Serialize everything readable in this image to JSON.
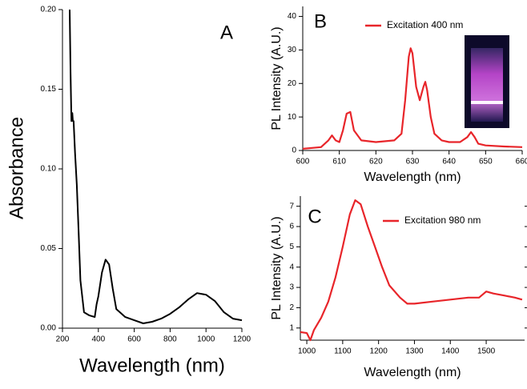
{
  "chart_data": [
    {
      "type": "line",
      "panel_label": "A",
      "x_label": "Wavelength (nm)",
      "y_label": "Absorbance",
      "x": [
        240,
        245,
        250,
        255,
        258,
        262,
        270,
        280,
        290,
        300,
        320,
        350,
        380,
        390,
        400,
        420,
        440,
        460,
        480,
        500,
        550,
        600,
        650,
        700,
        750,
        800,
        850,
        900,
        950,
        1000,
        1050,
        1100,
        1150,
        1200
      ],
      "series": [
        {
          "color": "#000000",
          "values": [
            0.2,
            0.16,
            0.13,
            0.135,
            0.13,
            0.13,
            0.11,
            0.09,
            0.06,
            0.03,
            0.01,
            0.008,
            0.007,
            0.015,
            0.02,
            0.035,
            0.043,
            0.04,
            0.025,
            0.012,
            0.007,
            0.005,
            0.003,
            0.004,
            0.006,
            0.009,
            0.013,
            0.018,
            0.022,
            0.021,
            0.017,
            0.01,
            0.006,
            0.005
          ]
        }
      ],
      "xlim": [
        200,
        1200
      ],
      "ylim": [
        0,
        0.2
      ],
      "xticks": [
        200,
        400,
        600,
        800,
        1000,
        1200
      ],
      "yticks": [
        {
          "value": 0,
          "label": "0.00"
        },
        0.05,
        {
          "value": 0.1,
          "label": "0.10"
        },
        0.15,
        {
          "value": 0.2,
          "label": "0.20"
        }
      ]
    },
    {
      "type": "line",
      "panel_label": "B",
      "x_label": "Wavelength (nm)",
      "y_label": "PL Intensity (A.U.)",
      "x": [
        600,
        605,
        607,
        608,
        609,
        610,
        611,
        612,
        613,
        614,
        616,
        620,
        625,
        627,
        628,
        629,
        629.5,
        630,
        631,
        632,
        633,
        633.5,
        634,
        635,
        636,
        638,
        640,
        643,
        645,
        646,
        647,
        648,
        650,
        655,
        660
      ],
      "series": [
        {
          "name": "Excitation  400 nm",
          "color": "#e8252a",
          "values": [
            0.5,
            1,
            3,
            4.5,
            3,
            2.5,
            6,
            11,
            11.5,
            6,
            3,
            2.5,
            3,
            5,
            15,
            28,
            30.5,
            29,
            19,
            15,
            19,
            20.5,
            18,
            10,
            5,
            3,
            2.5,
            2.5,
            4,
            5.5,
            4,
            2,
            1.5,
            1.2,
            1
          ]
        }
      ],
      "xlim": [
        600,
        660
      ],
      "ylim": [
        0,
        43
      ],
      "xticks": [
        600,
        610,
        620,
        630,
        640,
        650,
        660
      ],
      "yticks": [
        0,
        10,
        20,
        30,
        40
      ]
    },
    {
      "type": "line",
      "panel_label": "C",
      "x_label": "Wavelength (nm)",
      "y_label": "PL Intensity (A.U.)",
      "x": [
        982,
        1000,
        1010,
        1020,
        1040,
        1060,
        1080,
        1100,
        1120,
        1135,
        1150,
        1170,
        1190,
        1210,
        1230,
        1260,
        1280,
        1300,
        1350,
        1400,
        1450,
        1480,
        1500,
        1520,
        1550,
        1580,
        1600
      ],
      "series": [
        {
          "name": "Excitation  980 nm",
          "color": "#e8252a",
          "values": [
            0.8,
            0.75,
            0.4,
            0.9,
            1.5,
            2.3,
            3.5,
            5,
            6.6,
            7.3,
            7.1,
            6,
            5,
            4,
            3.1,
            2.5,
            2.2,
            2.2,
            2.3,
            2.4,
            2.5,
            2.5,
            2.8,
            2.7,
            2.6,
            2.5,
            2.4
          ]
        }
      ],
      "xlim": [
        982,
        1607
      ],
      "ylim": [
        0.4,
        7.5
      ],
      "xticks": [
        1000,
        1100,
        1200,
        1300,
        1400,
        1500
      ],
      "yticks": [
        1,
        2,
        3,
        4,
        5,
        6,
        7
      ]
    }
  ]
}
